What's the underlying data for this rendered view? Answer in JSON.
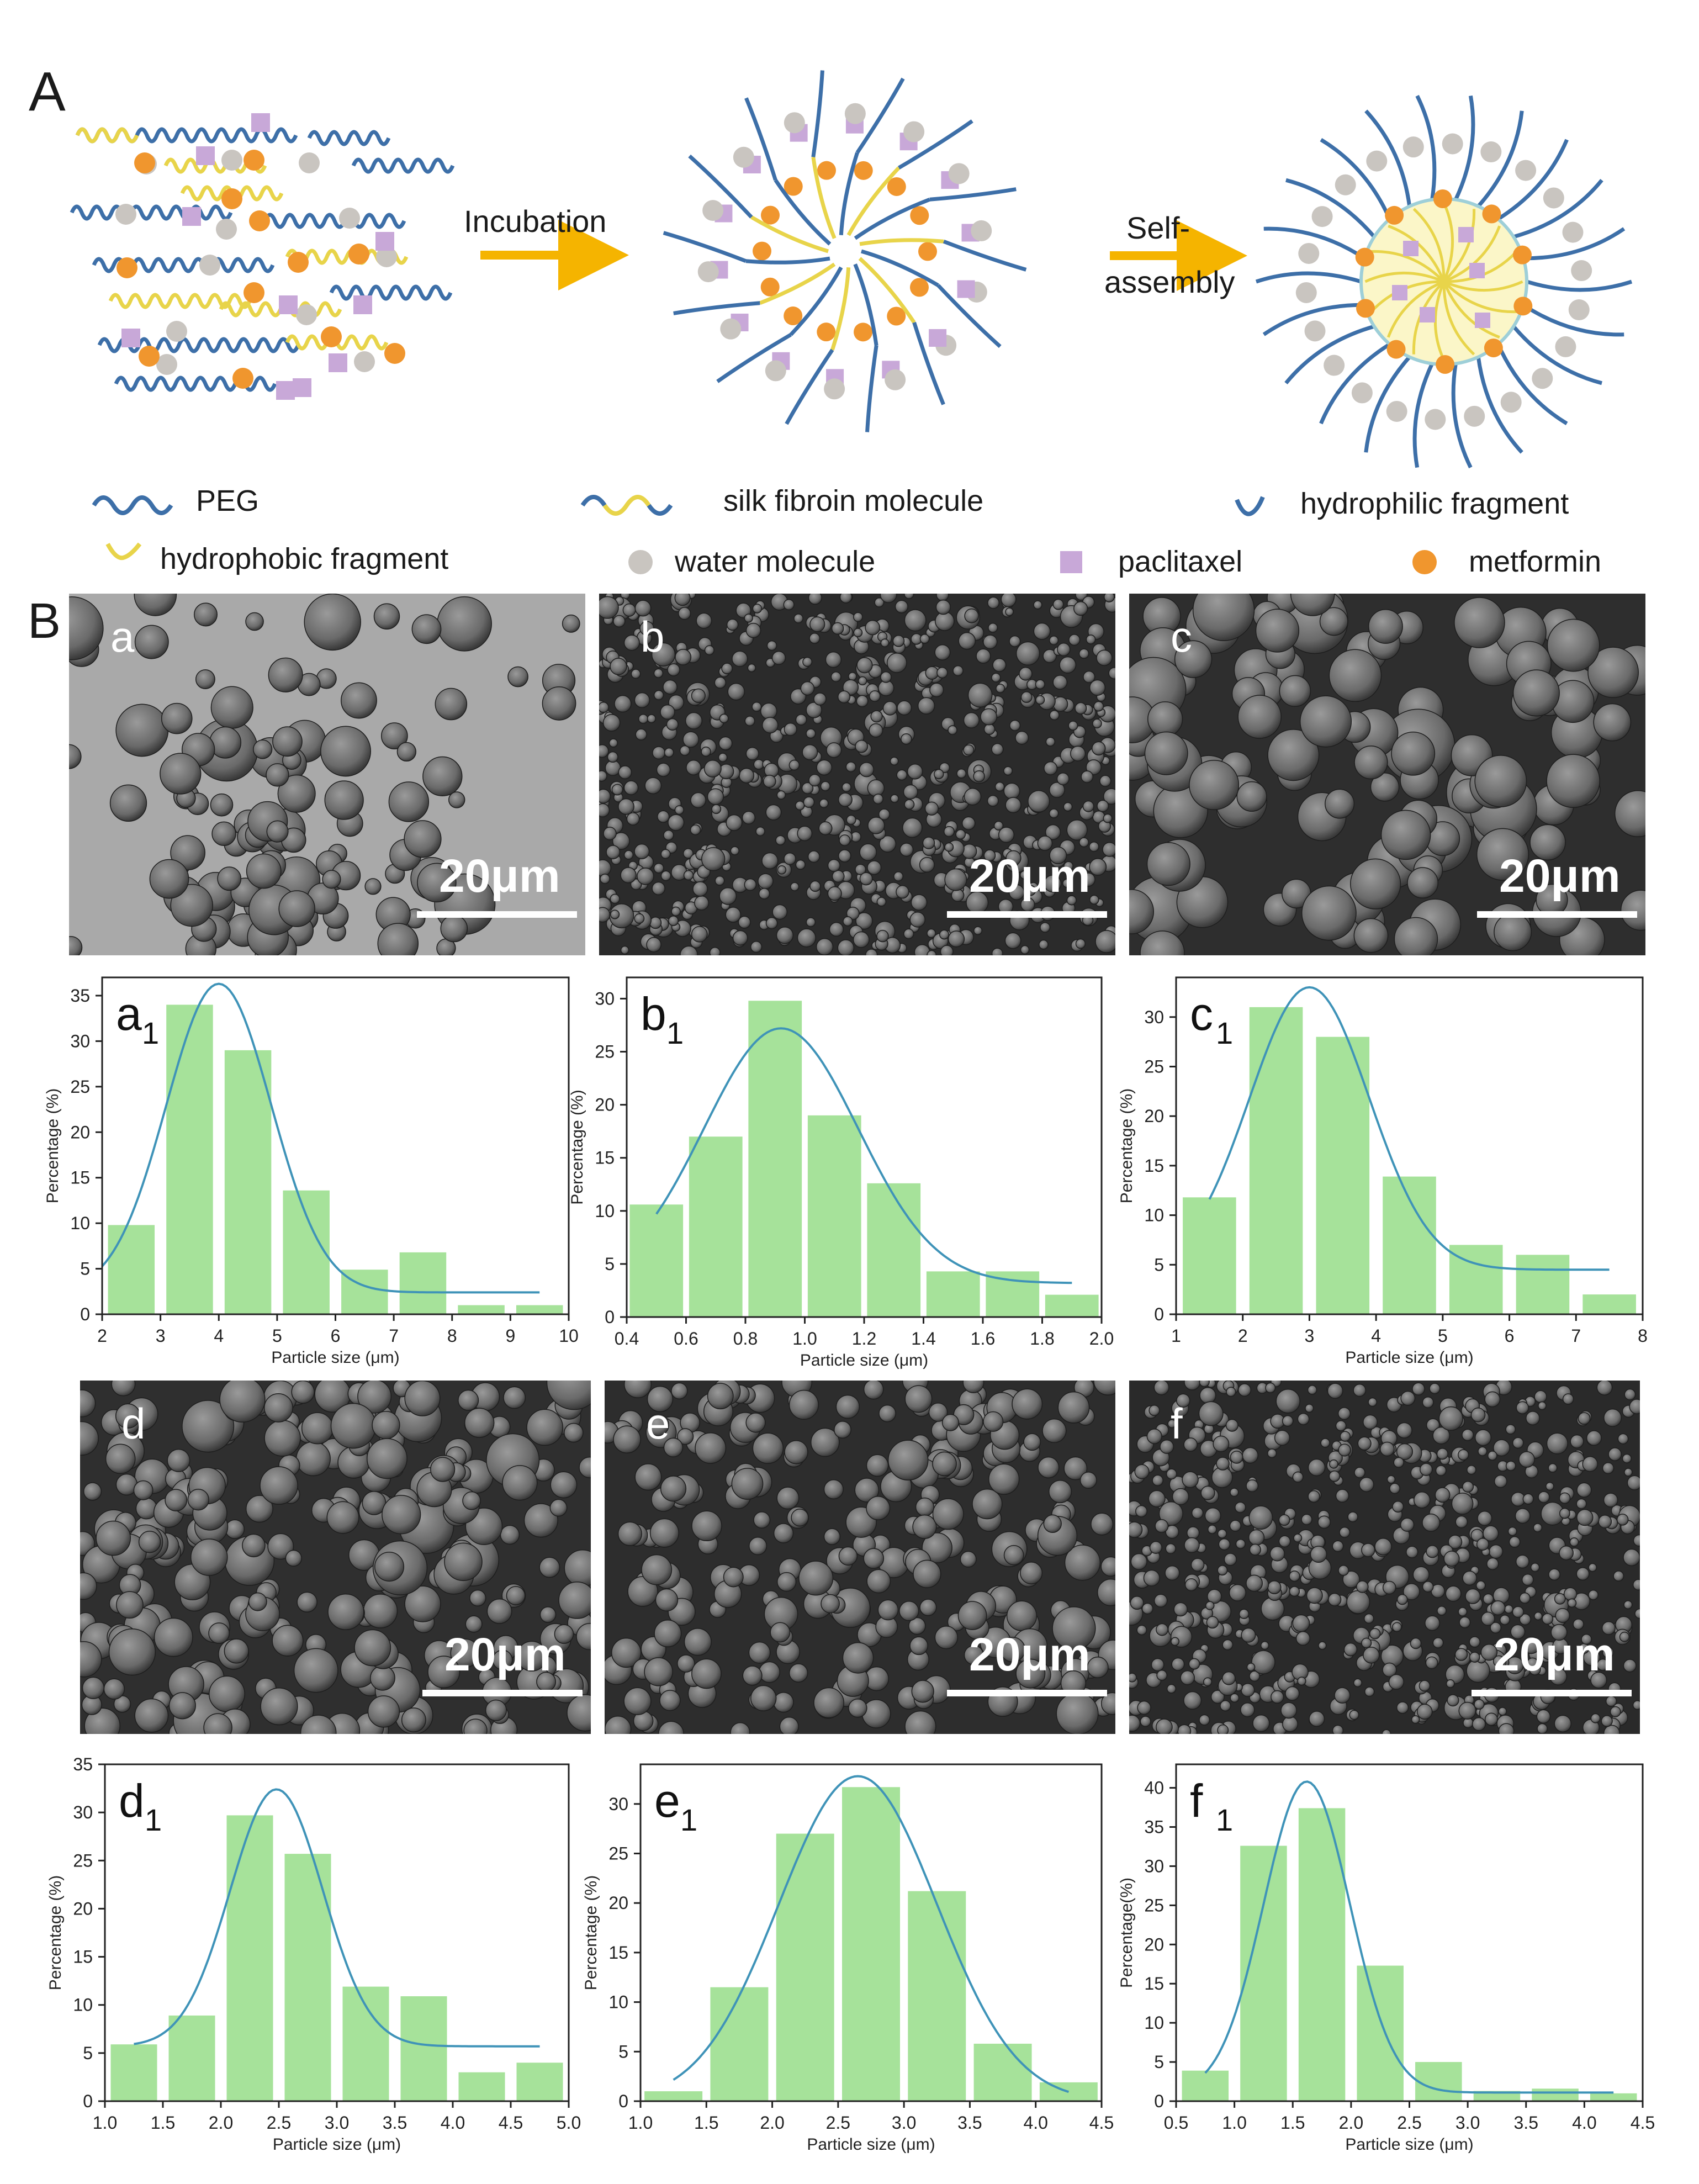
{
  "panel_A": {
    "label": "A",
    "arrow1_label": "Incubation",
    "arrow2_label_line1": "Self-",
    "arrow2_label_line2": "assembly",
    "legend": {
      "peg": "PEG",
      "silk": "silk fibroin molecule",
      "hydrophilic": "hydrophilic fragment",
      "hydrophobic": "hydrophobic fragment",
      "water": "water molecule",
      "paclitaxel": "paclitaxel",
      "metformin": "metformin"
    }
  },
  "panel_B": {
    "label": "B",
    "sem": [
      {
        "id": "a",
        "label": "a",
        "scale": "20μm"
      },
      {
        "id": "b",
        "label": "b",
        "scale": "20μm"
      },
      {
        "id": "c",
        "label": "c",
        "scale": "20μm"
      },
      {
        "id": "d",
        "label": "d",
        "scale": "20μm"
      },
      {
        "id": "e",
        "label": "e",
        "scale": "20μm"
      },
      {
        "id": "f",
        "label": "f",
        "scale": "20μm"
      }
    ]
  },
  "colors": {
    "peg_blue": "#3d6fa8",
    "silk_yellow": "#e8d44a",
    "water_gray": "#c9c5c0",
    "paclitaxel_purple": "#c8a8d8",
    "metformin_orange": "#f0962e",
    "arrow_orange": "#f5b400",
    "bar_green": "#a6e29a",
    "fit_blue": "#3f93b8"
  },
  "chart_data": [
    {
      "id": "a1",
      "type": "bar",
      "panel_letter": "a",
      "panel_sub": "1",
      "xlabel": "Particle size (μm)",
      "ylabel": "Percentage (%)",
      "xlim": [
        2,
        10
      ],
      "ylim": [
        0,
        37
      ],
      "xticks": [
        2,
        3,
        4,
        5,
        6,
        7,
        8,
        9,
        10
      ],
      "yticks": [
        0,
        5,
        10,
        15,
        20,
        25,
        30,
        35
      ],
      "bar_width": 0.8,
      "x": [
        2.5,
        3.5,
        4.5,
        5.5,
        6.5,
        7.5,
        8.5,
        9.5
      ],
      "values": [
        9.8,
        34,
        29,
        13.6,
        4.9,
        6.8,
        1,
        1
      ],
      "fit": {
        "mu": 4.0,
        "sigma": 0.9,
        "base": 2.4,
        "peak": 36.3,
        "range": [
          2,
          9.5
        ]
      }
    },
    {
      "id": "b1",
      "type": "bar",
      "panel_letter": "b",
      "panel_sub": "1",
      "xlabel": "Particle size (μm)",
      "ylabel": "Percentage (%)",
      "xlim": [
        0.4,
        2.0
      ],
      "ylim": [
        0,
        32
      ],
      "xticks": [
        0.4,
        0.6,
        0.8,
        1.0,
        1.2,
        1.4,
        1.6,
        1.8,
        2.0
      ],
      "yticks": [
        0,
        5,
        10,
        15,
        20,
        25,
        30
      ],
      "bar_width": 0.18,
      "x": [
        0.5,
        0.7,
        0.9,
        1.1,
        1.3,
        1.5,
        1.7,
        1.9
      ],
      "values": [
        10.6,
        17,
        29.8,
        19,
        12.6,
        4.3,
        4.3,
        2.1
      ],
      "fit": {
        "mu": 0.92,
        "sigma": 0.26,
        "base": 3.2,
        "peak": 27.2,
        "range": [
          0.5,
          1.9
        ]
      }
    },
    {
      "id": "c1",
      "type": "bar",
      "panel_letter": "c",
      "panel_sub": "1",
      "xlabel": "Particle size (μm)",
      "ylabel": "Percentage (%)",
      "xlim": [
        1,
        8
      ],
      "ylim": [
        0,
        34
      ],
      "xticks": [
        1,
        2,
        3,
        4,
        5,
        6,
        7,
        8
      ],
      "yticks": [
        0,
        5,
        10,
        15,
        20,
        25,
        30
      ],
      "bar_width": 0.8,
      "x": [
        1.5,
        2.5,
        3.5,
        4.5,
        5.5,
        6.5,
        7.5
      ],
      "values": [
        11.8,
        31,
        28,
        13.9,
        7,
        6,
        2
      ],
      "fit": {
        "mu": 3.0,
        "sigma": 0.9,
        "base": 4.5,
        "peak": 33,
        "range": [
          1.5,
          7.5
        ]
      }
    },
    {
      "id": "d1",
      "type": "bar",
      "panel_letter": "d",
      "panel_sub": "1",
      "xlabel": "Particle size (μm)",
      "ylabel": "Percentage (%)",
      "xlim": [
        1.0,
        5.0
      ],
      "ylim": [
        0,
        35
      ],
      "xticks": [
        1.0,
        1.5,
        2.0,
        2.5,
        3.0,
        3.5,
        4.0,
        4.5,
        5.0
      ],
      "yticks": [
        0,
        5,
        10,
        15,
        20,
        25,
        30,
        35
      ],
      "bar_width": 0.4,
      "x": [
        1.25,
        1.75,
        2.25,
        2.75,
        3.25,
        3.75,
        4.25,
        4.75
      ],
      "values": [
        5.9,
        8.9,
        29.7,
        25.7,
        11.9,
        10.9,
        3,
        4
      ],
      "fit": {
        "mu": 2.48,
        "sigma": 0.4,
        "base": 5.7,
        "peak": 32.4,
        "range": [
          1.25,
          4.75
        ]
      }
    },
    {
      "id": "e1",
      "type": "bar",
      "panel_letter": "e",
      "panel_sub": "1",
      "xlabel": "Particle size (μm)",
      "ylabel": "Percentage (%)",
      "xlim": [
        1.0,
        4.5
      ],
      "ylim": [
        0,
        34
      ],
      "xticks": [
        1.0,
        1.5,
        2.0,
        2.5,
        3.0,
        3.5,
        4.0,
        4.5
      ],
      "yticks": [
        0,
        5,
        10,
        15,
        20,
        25,
        30
      ],
      "bar_width": 0.44,
      "x": [
        1.25,
        1.75,
        2.25,
        2.75,
        3.25,
        3.75,
        4.25
      ],
      "values": [
        1,
        11.5,
        27,
        31.7,
        21.2,
        5.8,
        1.9
      ],
      "fit": {
        "mu": 2.65,
        "sigma": 0.6,
        "base": 0,
        "peak": 32.8,
        "range": [
          1.25,
          4.25
        ]
      }
    },
    {
      "id": "f1",
      "type": "bar",
      "panel_letter": "f",
      "panel_sub": "1",
      "xlabel": "Particle size (μm)",
      "ylabel": "Percentage(%)",
      "xlim": [
        0.5,
        4.5
      ],
      "ylim": [
        0,
        43
      ],
      "xticks": [
        0.5,
        1.0,
        1.5,
        2.0,
        2.5,
        3.0,
        3.5,
        4.0,
        4.5
      ],
      "yticks": [
        0,
        5,
        10,
        15,
        20,
        25,
        30,
        35,
        40
      ],
      "bar_width": 0.4,
      "x": [
        0.75,
        1.25,
        1.75,
        2.25,
        2.75,
        3.25,
        3.75,
        4.25
      ],
      "values": [
        3.9,
        32.6,
        37.4,
        17.3,
        5,
        1.3,
        1.6,
        1
      ],
      "fit": {
        "mu": 1.62,
        "sigma": 0.37,
        "base": 1.1,
        "peak": 40.8,
        "range": [
          0.75,
          4.25
        ]
      }
    }
  ]
}
